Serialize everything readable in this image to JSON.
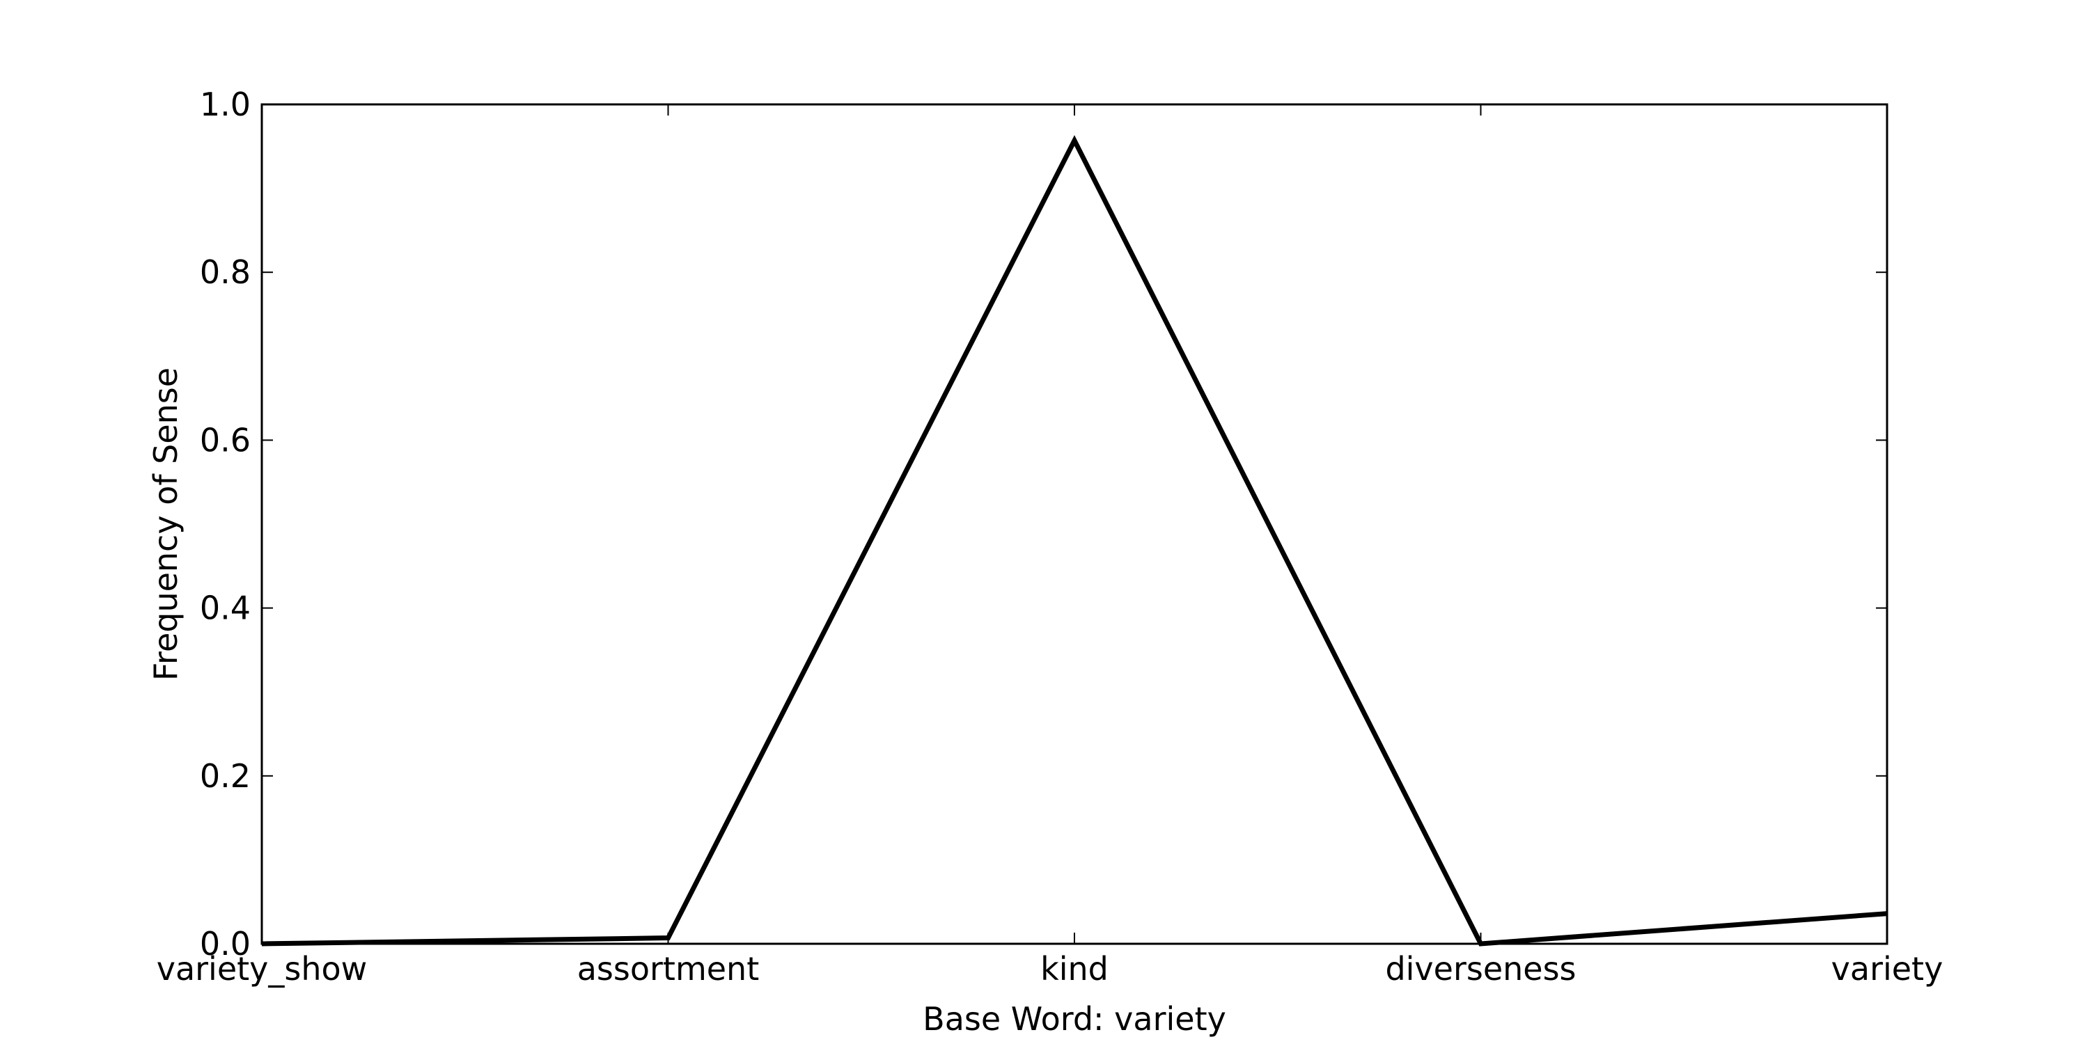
{
  "chart_data": {
    "type": "line",
    "title": "",
    "xlabel": "Base Word: variety",
    "ylabel": "Frequency of Sense",
    "categories": [
      "variety_show",
      "assortment",
      "kind",
      "diverseness",
      "variety"
    ],
    "series": [
      {
        "values": [
          0.0,
          0.007,
          0.957,
          0.0,
          0.036
        ],
        "color": "#000000"
      }
    ],
    "ylim": [
      0,
      1
    ],
    "yticks": [
      "0.0",
      "0.2",
      "0.4",
      "0.6",
      "0.8",
      "1.0"
    ],
    "grid": false,
    "legend": "none"
  }
}
